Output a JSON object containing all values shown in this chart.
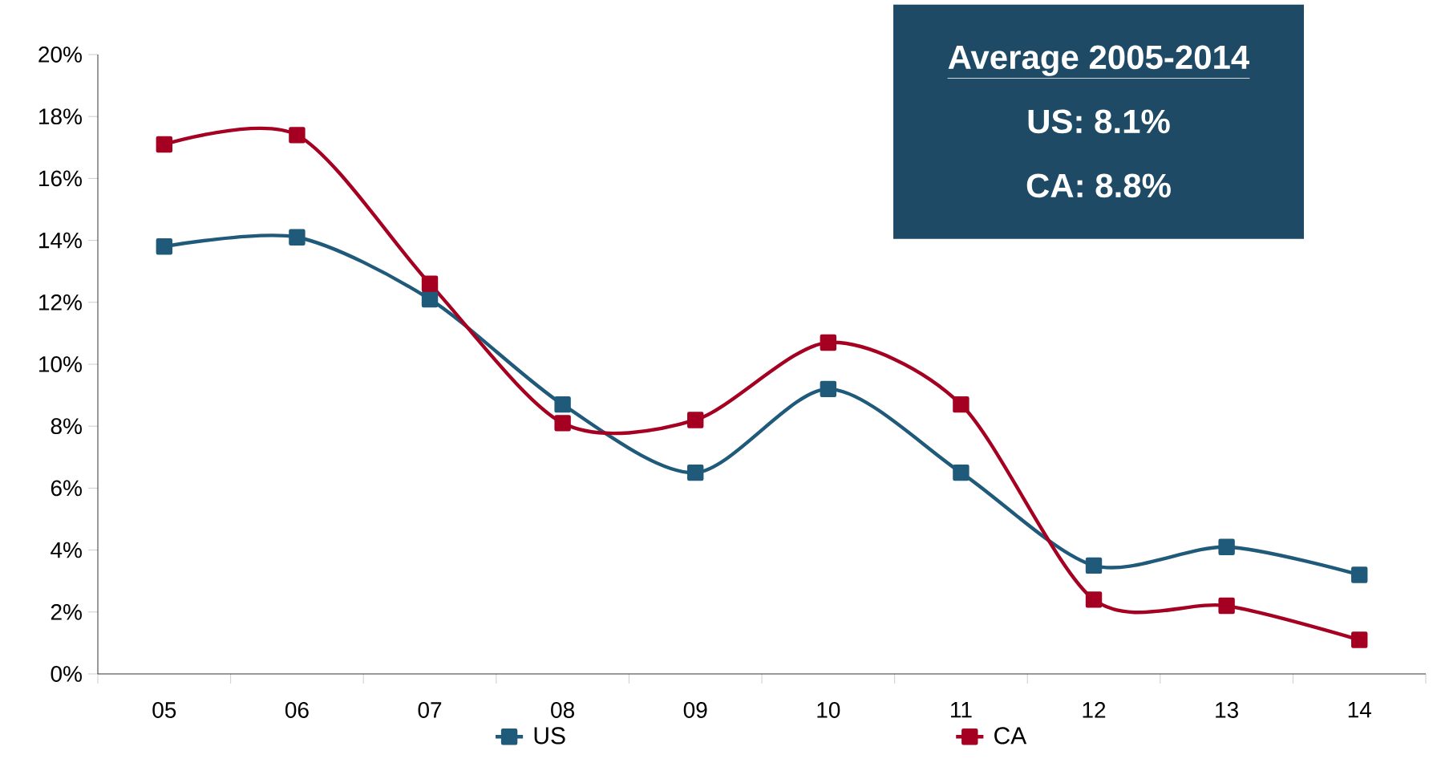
{
  "chart_data": {
    "type": "line",
    "categories": [
      "05",
      "06",
      "07",
      "08",
      "09",
      "10",
      "11",
      "12",
      "13",
      "14"
    ],
    "series": [
      {
        "name": "US",
        "color": "#1f5a7a",
        "values": [
          13.8,
          14.1,
          12.1,
          8.7,
          6.5,
          9.2,
          6.5,
          3.5,
          4.1,
          3.2
        ]
      },
      {
        "name": "CA",
        "color": "#a50021",
        "values": [
          17.1,
          17.4,
          12.6,
          8.1,
          8.2,
          10.7,
          8.7,
          2.4,
          2.2,
          1.1
        ]
      }
    ],
    "ylim": [
      0,
      20
    ],
    "yticks": [
      {
        "value": 0,
        "label": "0%"
      },
      {
        "value": 2,
        "label": "2%"
      },
      {
        "value": 4,
        "label": "4%"
      },
      {
        "value": 6,
        "label": "6%"
      },
      {
        "value": 8,
        "label": "8%"
      },
      {
        "value": 10,
        "label": "10%"
      },
      {
        "value": 12,
        "label": "12%"
      },
      {
        "value": 14,
        "label": "14%"
      },
      {
        "value": 16,
        "label": "16%"
      },
      {
        "value": 18,
        "label": "18%"
      },
      {
        "value": 20,
        "label": "20%"
      }
    ],
    "annotations": [
      "Average 2005-2014",
      "US: 8.1%",
      "CA: 8.8%"
    ],
    "marker": "square",
    "line_style": "solid",
    "legend": "bottom",
    "grid": false
  }
}
